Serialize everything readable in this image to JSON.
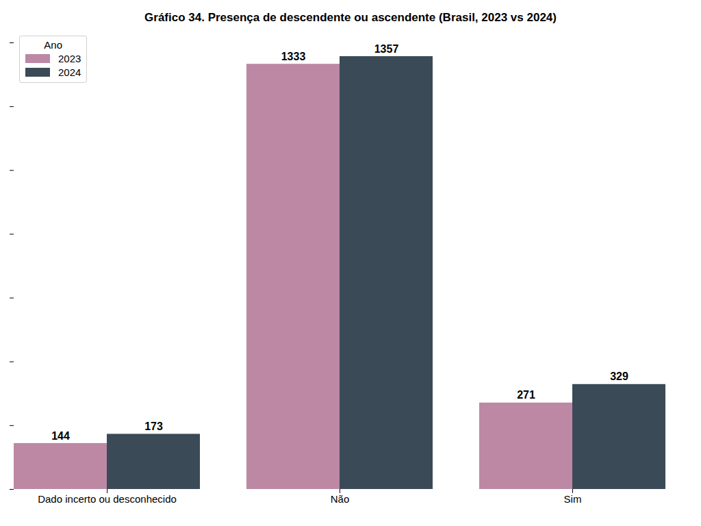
{
  "chart_data": {
    "type": "bar",
    "title": "Gráfico 34. Presença de descendente ou ascendente (Brasil, 2023 vs 2024)",
    "categories": [
      "Dado incerto ou desconhecido",
      "Não",
      "Sim"
    ],
    "series": [
      {
        "name": "2023",
        "color": "#bc88a4",
        "values": [
          144,
          1333,
          271
        ]
      },
      {
        "name": "2024",
        "color": "#3a4a56",
        "values": [
          173,
          1357,
          329
        ]
      }
    ],
    "ylim": [
      0,
      1400
    ],
    "yticks": [
      0,
      200,
      400,
      600,
      800,
      1000,
      1200,
      1400
    ],
    "legend": "upper left",
    "legend_title": "Ano",
    "data_labels": true,
    "tick_labels": "x",
    "grid": false
  }
}
